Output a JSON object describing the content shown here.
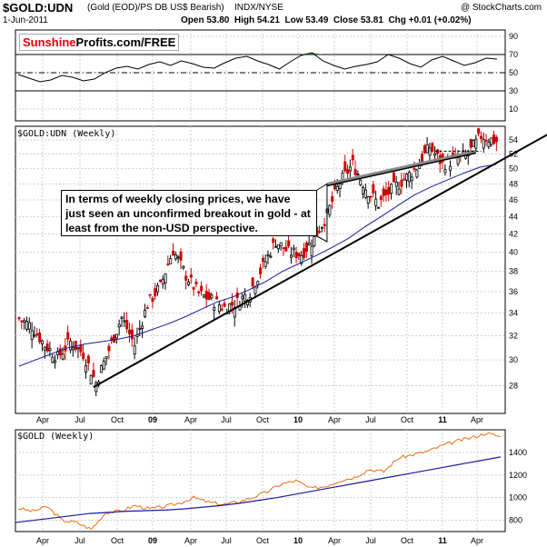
{
  "header": {
    "symbol": "$GOLD:UDN",
    "description": "(Gold (EOD)/PS DB US$ Bearish)",
    "exchange": "INDX/NYSE",
    "date": "1-Jun-2011",
    "copyright": "@ StockCharts.com",
    "ohlc": "Open 53.80  High 54.21  Low 53.49  Close 53.81  Chg +0.01 (+0.02%)"
  },
  "logo": {
    "part1": "Sunshine",
    "part2": "Profits.com/FREE",
    "part1_color": "#e8000b"
  },
  "annotation": "In terms of weekly closing prices, we have just seen an unconfirmed breakout in gold - at least from the non-USD perspective.",
  "colors": {
    "up_bar": "#000000",
    "down_bar": "#cc0000",
    "ma": "#1a1aa0",
    "gold": "#ee6a10",
    "rsi_fill": "#3c8c3c",
    "trendline": "#000000"
  },
  "chart_data": [
    {
      "type": "line",
      "title": "",
      "series": [
        {
          "name": "",
          "values": [
            48,
            44,
            40,
            42,
            47,
            45,
            41,
            43,
            50,
            55,
            57,
            54,
            59,
            62,
            58,
            63,
            60,
            56,
            55,
            61,
            66,
            68,
            63,
            59,
            54,
            62,
            69,
            72,
            63,
            58,
            54,
            57,
            59,
            62,
            70,
            66,
            60,
            56,
            64,
            68,
            63,
            58,
            61,
            66,
            65
          ]
        }
      ],
      "ylim": [
        0,
        100
      ],
      "yticks": [
        10,
        30,
        50,
        70,
        90
      ],
      "reference_lines": [
        30,
        50,
        70
      ]
    },
    {
      "type": "candlestick",
      "title": "$GOLD:UDN (Weekly)",
      "x_labels": [
        "Apr",
        "Jul",
        "Oct",
        "09",
        "Apr",
        "Jul",
        "Oct",
        "10",
        "Apr",
        "Jul",
        "Oct",
        "11",
        "Apr"
      ],
      "ylim": [
        26,
        56
      ],
      "yticks": [
        28,
        30,
        32,
        34,
        36,
        38,
        40,
        42,
        44,
        46,
        48,
        50,
        52,
        54
      ],
      "scale": "log",
      "series": [
        {
          "name": "weekly_close",
          "x": [
            0,
            5,
            10,
            15,
            20,
            25,
            30,
            35,
            40,
            45,
            50,
            55,
            60,
            65,
            70,
            75,
            80,
            85,
            90,
            95,
            100,
            105,
            110,
            115,
            120,
            125,
            130,
            135,
            140,
            145,
            150,
            155,
            160,
            165,
            170,
            175,
            180,
            186
          ],
          "values": [
            33.5,
            32.8,
            31.2,
            30.2,
            31.5,
            30.5,
            28.2,
            30.8,
            33.6,
            31.2,
            34.8,
            36.5,
            40.2,
            37.6,
            35.8,
            35.2,
            34.5,
            35.0,
            36.0,
            38.5,
            41.2,
            40.0,
            39.8,
            41.5,
            44.2,
            48.2,
            50.6,
            47.5,
            45.5,
            47.2,
            48.6,
            50.2,
            53.0,
            50.6,
            51.2,
            52.0,
            54.6,
            53.8
          ]
        },
        {
          "name": "moving_average",
          "values": [
            29.5,
            30.0,
            30.5,
            31.0,
            31.3,
            31.5,
            31.7,
            32.0,
            32.5,
            33.0,
            33.6,
            34.3,
            35.0,
            35.5,
            36.2,
            37.0,
            38.0,
            38.8,
            39.6,
            40.5,
            41.5,
            42.8,
            44.0,
            45.3,
            46.6,
            47.6,
            48.5,
            49.4,
            50.2,
            50.6
          ]
        }
      ],
      "trendlines": [
        {
          "name": "support",
          "from": [
            29,
            27.9
          ],
          "to": [
            190,
            52.0
          ]
        },
        {
          "name": "resistance",
          "from": [
            120,
            48.0
          ],
          "to": [
            178,
            52.4
          ]
        }
      ]
    },
    {
      "type": "line",
      "title": "$GOLD (Weekly)",
      "x_labels": [
        "Apr",
        "Jul",
        "Oct",
        "09",
        "Apr",
        "Jul",
        "Oct",
        "10",
        "Apr",
        "Jul",
        "Oct",
        "11",
        "Apr"
      ],
      "ylim": [
        700,
        1600
      ],
      "yticks": [
        800,
        1000,
        1200,
        1400
      ],
      "series": [
        {
          "name": "gold",
          "values": [
            905,
            880,
            920,
            800,
            780,
            720,
            870,
            880,
            930,
            900,
            920,
            950,
            1000,
            960,
            940,
            960,
            1000,
            1050,
            1120,
            1150,
            1080,
            1100,
            1150,
            1180,
            1250,
            1230,
            1350,
            1380,
            1410,
            1460,
            1500,
            1530,
            1570,
            1540
          ]
        },
        {
          "name": "moving_average",
          "values": [
            780,
            800,
            820,
            840,
            860,
            870,
            880,
            885,
            890,
            900,
            915,
            930,
            950,
            975,
            1000,
            1030,
            1060,
            1090,
            1120,
            1150,
            1180,
            1210,
            1240,
            1270,
            1300,
            1330,
            1360
          ]
        }
      ]
    }
  ]
}
